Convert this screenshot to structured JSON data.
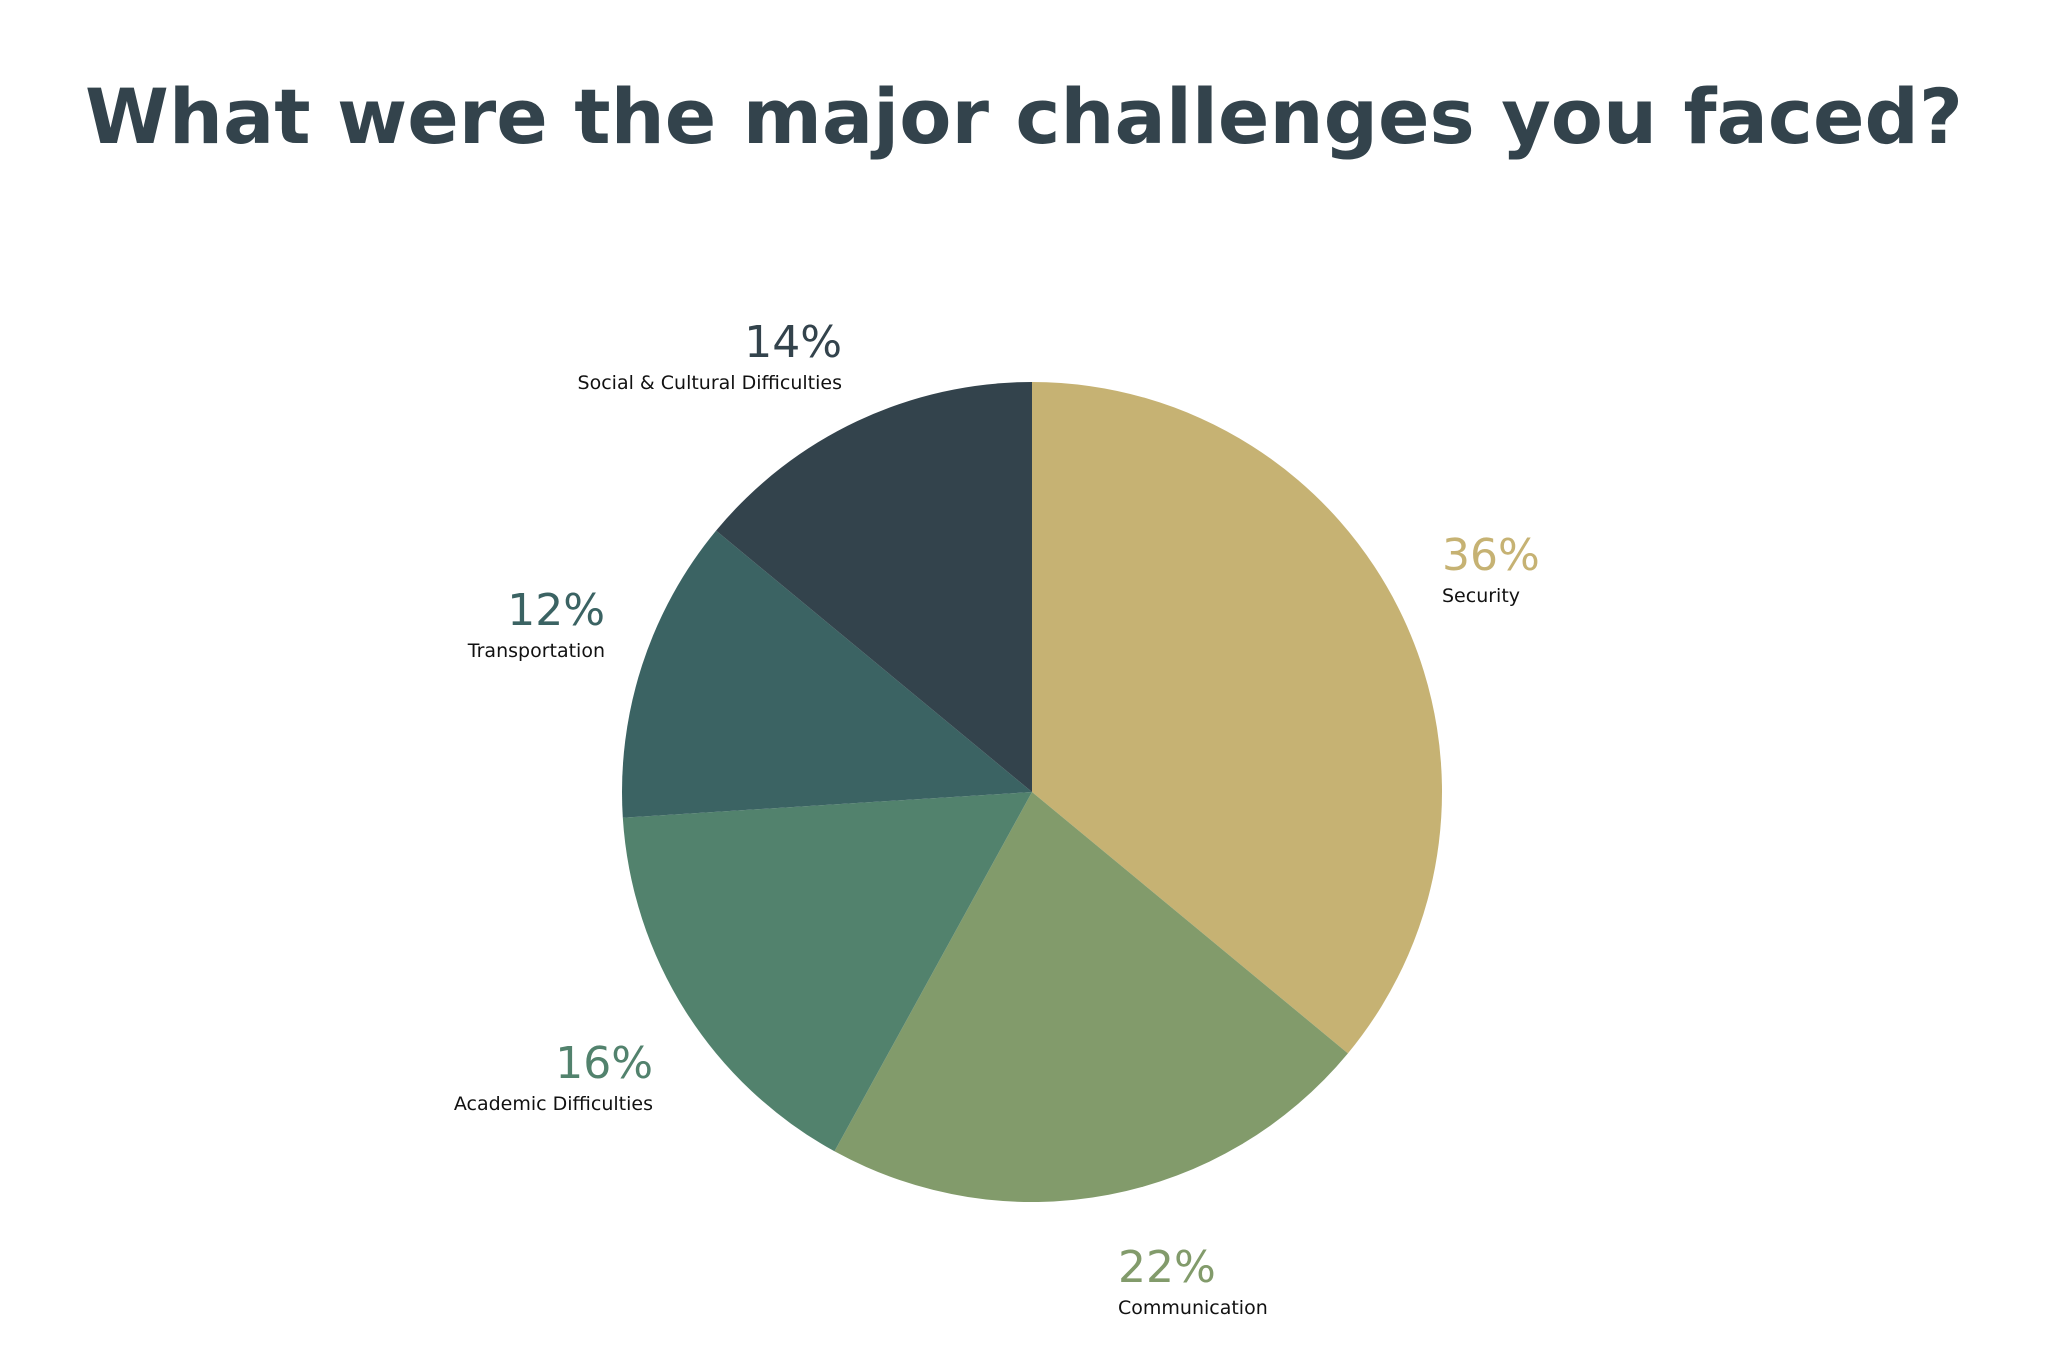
{
  "chart_data": {
    "type": "pie",
    "title": "What were the major challenges you faced?",
    "slices": [
      {
        "label": "Security",
        "value": 36,
        "pct_label": "36%",
        "color": "#c6b273"
      },
      {
        "label": "Communication",
        "value": 22,
        "pct_label": "22%",
        "color": "#829b6b"
      },
      {
        "label": "Academic Difficulties",
        "value": 16,
        "pct_label": "16%",
        "color": "#52826d"
      },
      {
        "label": "Transportation",
        "value": 12,
        "pct_label": "12%",
        "color": "#3b6363"
      },
      {
        "label": "Social & Cultural Difficulties",
        "value": 14,
        "pct_label": "14%",
        "color": "#33434c"
      }
    ],
    "start": "12 o'clock",
    "direction": "clockwise",
    "legend": "none"
  }
}
